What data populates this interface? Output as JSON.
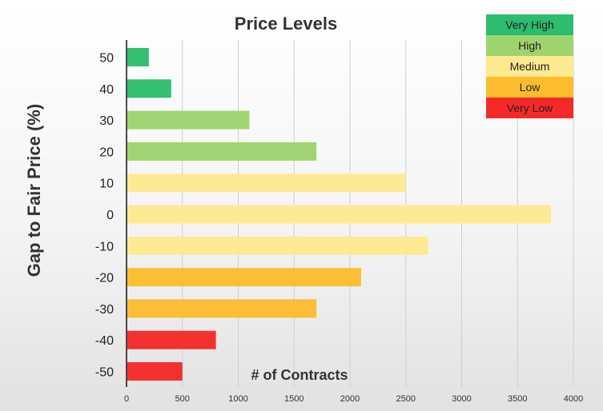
{
  "chart_data": {
    "type": "bar",
    "orientation": "horizontal",
    "title": "Price Levels",
    "xlabel": "# of Contracts",
    "ylabel": "Gap to Fair Price (%)",
    "categories": [
      "50",
      "40",
      "30",
      "20",
      "10",
      "0",
      "-10",
      "-20",
      "-30",
      "-40",
      "-50"
    ],
    "values": [
      200,
      400,
      1100,
      1700,
      2500,
      3800,
      2700,
      2100,
      1700,
      800,
      500
    ],
    "bar_levels": [
      "Very High",
      "Very High",
      "High",
      "High",
      "Medium",
      "Medium",
      "Medium",
      "Low",
      "Low",
      "Very Low",
      "Very Low"
    ],
    "xlim": [
      0,
      4000
    ],
    "xticks": [
      "0",
      "500",
      "1000",
      "1500",
      "2000",
      "2500",
      "3000",
      "3500",
      "4000"
    ],
    "grid": "vertical",
    "legend_position": "top-right",
    "legend": [
      {
        "label": "Very High",
        "color": "#2dbd6e"
      },
      {
        "label": "High",
        "color": "#9ed46e"
      },
      {
        "label": "Medium",
        "color": "#fde98f"
      },
      {
        "label": "Low",
        "color": "#fbbd2e"
      },
      {
        "label": "Very Low",
        "color": "#f42a2a"
      }
    ]
  }
}
